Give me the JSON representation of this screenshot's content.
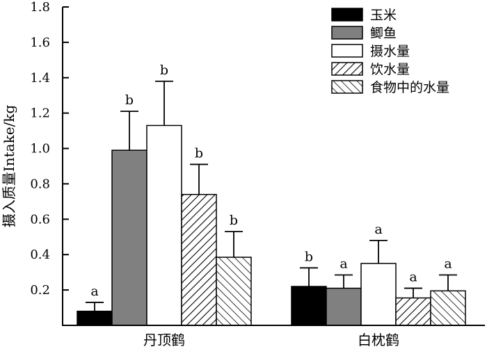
{
  "chart_data": {
    "type": "bar",
    "title": "",
    "xlabel": "",
    "ylabel": "摄入质量Intake/kg",
    "ylim": [
      0,
      1.8
    ],
    "yticks": [
      0.2,
      0.4,
      0.6,
      0.8,
      1.0,
      1.2,
      1.4,
      1.6,
      1.8
    ],
    "ytick_labels": [
      "0.2",
      "0.4",
      "0.6",
      "0.8",
      "1.0",
      "1.2",
      "1.4",
      "1.6",
      "1.8"
    ],
    "categories": [
      "丹顶鹤",
      "白枕鹤"
    ],
    "legend_position": "top-right",
    "grid": false,
    "series": [
      {
        "name": "玉米",
        "fill": "#000000",
        "pattern": "solid",
        "values": [
          0.08,
          0.22
        ],
        "errors": [
          0.05,
          0.105
        ],
        "letters": [
          "a",
          "b"
        ]
      },
      {
        "name": "鲫鱼",
        "fill": "#808080",
        "pattern": "solid",
        "values": [
          0.99,
          0.21
        ],
        "errors": [
          0.22,
          0.075
        ],
        "letters": [
          "b",
          "a"
        ]
      },
      {
        "name": "摄水量",
        "fill": "#ffffff",
        "pattern": "solid",
        "values": [
          1.13,
          0.35
        ],
        "errors": [
          0.25,
          0.13
        ],
        "letters": [
          "b",
          "a"
        ]
      },
      {
        "name": "饮水量",
        "fill": "#ffffff",
        "pattern": "hatch-forward",
        "values": [
          0.74,
          0.155
        ],
        "errors": [
          0.17,
          0.055
        ],
        "letters": [
          "b",
          "a"
        ]
      },
      {
        "name": "食物中的水量",
        "fill": "#ffffff",
        "pattern": "hatch-back",
        "values": [
          0.385,
          0.195
        ],
        "errors": [
          0.145,
          0.09
        ],
        "letters": [
          "b",
          "a"
        ]
      }
    ]
  }
}
